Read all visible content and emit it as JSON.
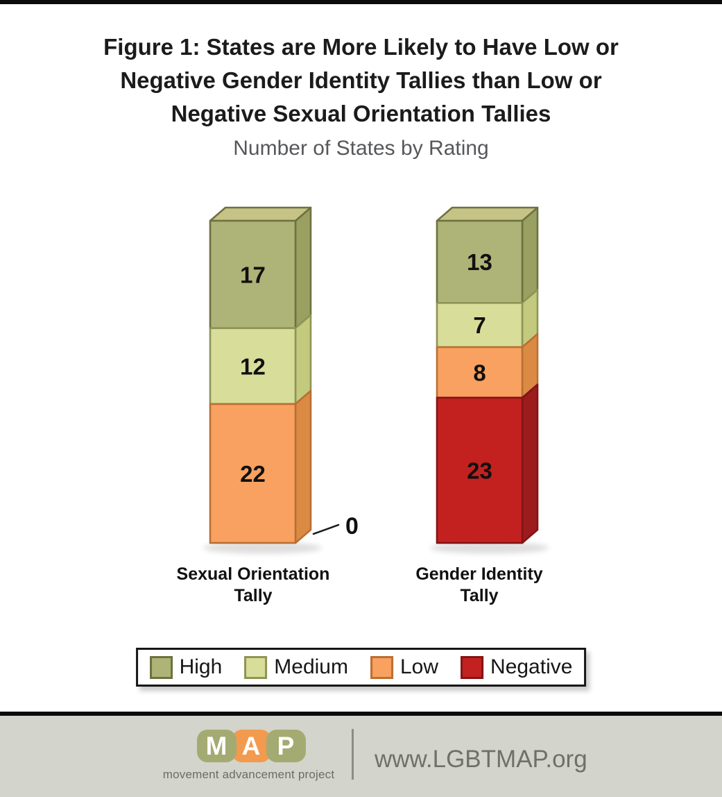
{
  "page": {
    "background": "#ffffff",
    "top_bar_color": "#0b0b0b",
    "footer_background": "#d3d4cb"
  },
  "title": {
    "full": "Figure 1: States are More Likely to Have Low or Negative Gender Identity Tallies than Low or Negative Sexual Orientation Tallies",
    "lines": [
      "Figure 1: States are More Likely to Have Low or",
      "Negative Gender Identity Tallies than Low or",
      "Negative Sexual Orientation Tallies"
    ]
  },
  "chart_data": {
    "type": "bar",
    "variant": "3d-stacked-column",
    "title": "Figure 1: States are More Likely to Have Low or Negative Gender Identity Tallies than Low or Negative Sexual Orientation Tallies",
    "subtitle": "Number of States by Rating",
    "categories": [
      "Sexual Orientation Tally",
      "Gender Identity Tally"
    ],
    "axis_labels": [
      [
        "Sexual Orientation",
        "Tally"
      ],
      [
        "Gender Identity",
        "Tally"
      ]
    ],
    "stack_order_top_to_bottom": [
      "High",
      "Medium",
      "Low",
      "Negative"
    ],
    "series": [
      {
        "name": "High",
        "values": [
          17,
          13
        ]
      },
      {
        "name": "Medium",
        "values": [
          12,
          7
        ]
      },
      {
        "name": "Low",
        "values": [
          22,
          8
        ]
      },
      {
        "name": "Negative",
        "values": [
          0,
          23
        ]
      }
    ],
    "totals": [
      51,
      51
    ],
    "data_labels": true,
    "zero_callout": {
      "category_index": 0,
      "series": "Negative",
      "label": "0"
    },
    "legend": {
      "position": "bottom",
      "entries": [
        "High",
        "Medium",
        "Low",
        "Negative"
      ]
    },
    "colors": {
      "High": {
        "front": "#aeb377",
        "side": "#99a062",
        "top": "#c6c386",
        "border": "#6e7140"
      },
      "Medium": {
        "front": "#d9dd9a",
        "side": "#c3ca7e",
        "top": "#e4e7ad",
        "border": "#8e9456"
      },
      "Low": {
        "front": "#f8a160",
        "side": "#db8a44",
        "top": "#f9b67d",
        "border": "#b96f34"
      },
      "Negative": {
        "front": "#c3211f",
        "side": "#9c1b1d",
        "top": "#d24a45",
        "border": "#831416"
      }
    }
  },
  "footer": {
    "logo": {
      "letters": [
        "M",
        "A",
        "P"
      ],
      "tile_colors": [
        "#a4ab72",
        "#f29a4e",
        "#a4ab72"
      ],
      "tagline": "movement advancement project",
      "arrow_color": "#f29a4e"
    },
    "url": "www.LGBTMAP.org"
  }
}
